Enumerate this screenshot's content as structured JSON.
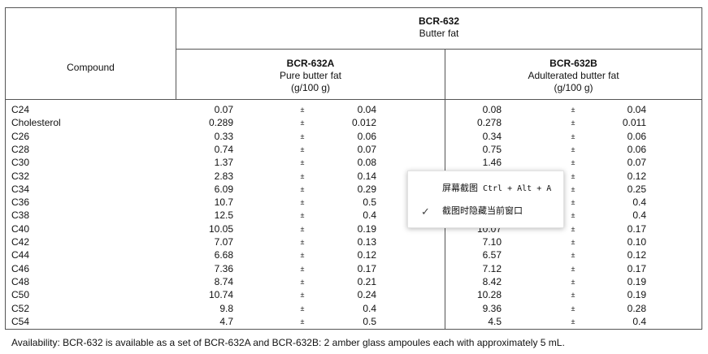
{
  "header": {
    "top_title": "BCR-632",
    "top_subtitle": "Butter fat",
    "compound_label": "Compound",
    "col_a": {
      "title": "BCR-632A",
      "subtitle": "Pure butter fat",
      "unit": "(g/100 g)"
    },
    "col_b": {
      "title": "BCR-632B",
      "subtitle": "Adulterated butter fat",
      "unit": "(g/100 g)"
    }
  },
  "pm_symbol": "±",
  "rows": [
    {
      "compound": "C24",
      "a_val": "0.07",
      "a_unc": "0.04",
      "b_val": "0.08",
      "b_unc": "0.04"
    },
    {
      "compound": "Cholesterol",
      "a_val": "0.289",
      "a_unc": "0.012",
      "b_val": "0.278",
      "b_unc": "0.011"
    },
    {
      "compound": "C26",
      "a_val": "0.33",
      "a_unc": "0.06",
      "b_val": "0.34",
      "b_unc": "0.06"
    },
    {
      "compound": "C28",
      "a_val": "0.74",
      "a_unc": "0.07",
      "b_val": "0.75",
      "b_unc": "0.06"
    },
    {
      "compound": "C30",
      "a_val": "1.37",
      "a_unc": "0.08",
      "b_val": "1.46",
      "b_unc": "0.07"
    },
    {
      "compound": "C32",
      "a_val": "2.83",
      "a_unc": "0.14",
      "b_val": "3.30",
      "b_unc": "0.12"
    },
    {
      "compound": "C34",
      "a_val": "6.09",
      "a_unc": "0.29",
      "b_val": "",
      "b_unc": "0.25"
    },
    {
      "compound": "C36",
      "a_val": "10.7",
      "a_unc": "0.5",
      "b_val": "",
      "b_unc": "0.4"
    },
    {
      "compound": "C38",
      "a_val": "12.5",
      "a_unc": "0.4",
      "b_val": "",
      "b_unc": "0.4"
    },
    {
      "compound": "C40",
      "a_val": "10.05",
      "a_unc": "0.19",
      "b_val": "10.07",
      "b_unc": "0.17"
    },
    {
      "compound": "C42",
      "a_val": "7.07",
      "a_unc": "0.13",
      "b_val": "7.10",
      "b_unc": "0.10"
    },
    {
      "compound": "C44",
      "a_val": "6.68",
      "a_unc": "0.12",
      "b_val": "6.57",
      "b_unc": "0.12"
    },
    {
      "compound": "C46",
      "a_val": "7.36",
      "a_unc": "0.17",
      "b_val": "7.12",
      "b_unc": "0.17"
    },
    {
      "compound": "C48",
      "a_val": "8.74",
      "a_unc": "0.21",
      "b_val": "8.42",
      "b_unc": "0.19"
    },
    {
      "compound": "C50",
      "a_val": "10.74",
      "a_unc": "0.24",
      "b_val": "10.28",
      "b_unc": "0.19"
    },
    {
      "compound": "C52",
      "a_val": "9.8",
      "a_unc": "0.4",
      "b_val": "9.36",
      "b_unc": "0.28"
    },
    {
      "compound": "C54",
      "a_val": "4.7",
      "a_unc": "0.5",
      "b_val": "4.5",
      "b_unc": "0.4"
    }
  ],
  "footnote": "Availability: BCR-632 is available as a set of BCR-632A and BCR-632B: 2 amber glass ampoules each with approximately 5 mL.",
  "context_menu": {
    "item1_label": "屏幕截图",
    "item1_shortcut": "Ctrl + Alt + A",
    "item2_label": "截图时隐藏当前窗口",
    "item2_icon": "check-icon"
  }
}
